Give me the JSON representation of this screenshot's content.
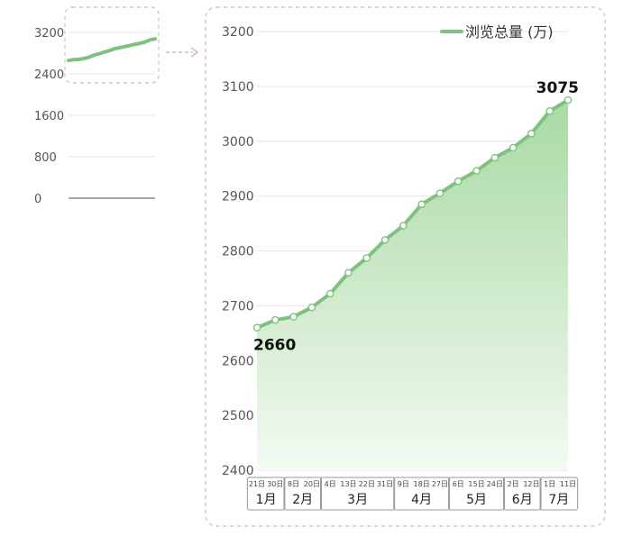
{
  "chart_data": [
    {
      "type": "line",
      "role": "overview",
      "ylim": [
        0,
        3200
      ],
      "yticks": [
        0,
        800,
        1600,
        2400,
        3200
      ],
      "series": [
        {
          "values": [
            2660,
            2674,
            2680,
            2697,
            2722,
            2760,
            2787,
            2820,
            2846,
            2885,
            2905,
            2927,
            2946,
            2970,
            2988,
            3014,
            3055,
            3075
          ]
        }
      ]
    },
    {
      "type": "area",
      "role": "detail",
      "ylim": [
        2400,
        3200
      ],
      "yticks": [
        2400,
        2500,
        2600,
        2700,
        2800,
        2900,
        3000,
        3100,
        3200
      ],
      "legend": {
        "label": "浏览总量 (万)",
        "position": "top-right"
      },
      "series": [
        {
          "name": "浏览总量 (万)",
          "values": [
            2660,
            2674,
            2680,
            2697,
            2722,
            2760,
            2787,
            2820,
            2846,
            2885,
            2905,
            2927,
            2946,
            2970,
            2988,
            3014,
            3055,
            3075
          ]
        }
      ],
      "x_day_labels": [
        "21日",
        "30日",
        "8日",
        "20日",
        "4日",
        "13日",
        "22日",
        "31日",
        "9日",
        "18日",
        "27日",
        "6日",
        "15日",
        "24日",
        "2日",
        "12日",
        "1日",
        "11日"
      ],
      "month_groups": [
        {
          "label": "1月",
          "count": 2
        },
        {
          "label": "2月",
          "count": 2
        },
        {
          "label": "3月",
          "count": 4
        },
        {
          "label": "4月",
          "count": 3
        },
        {
          "label": "5月",
          "count": 3
        },
        {
          "label": "6月",
          "count": 2
        },
        {
          "label": "7月",
          "count": 2
        }
      ],
      "annotations": [
        {
          "text": "2660",
          "index": 0
        },
        {
          "text": "3075",
          "index": 17
        }
      ]
    }
  ],
  "colors": {
    "line": "#7fc27f",
    "area_top": "#a9d9a4",
    "area_bottom": "#f3faf2",
    "dashed_box": "#cccccc",
    "arrow": "#d9b8c4",
    "grid": "#e6e6e6",
    "tick_text": "#555555",
    "annotation_text": "#111111"
  }
}
